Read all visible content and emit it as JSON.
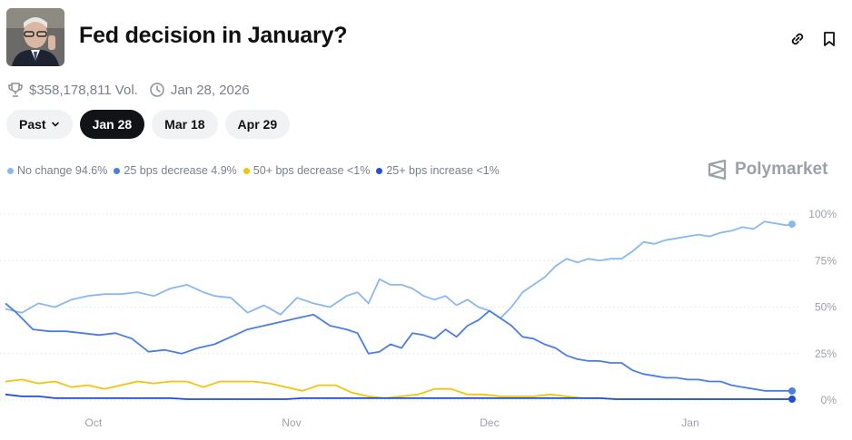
{
  "header": {
    "title": "Fed decision in January?",
    "avatar_icon": "fed-chair-portrait",
    "link_icon": "link-icon",
    "bookmark_icon": "bookmark-icon"
  },
  "meta": {
    "volume": "$358,178,811 Vol.",
    "date": "Jan 28, 2026"
  },
  "tabs": [
    {
      "label": "Past",
      "active": false,
      "dropdown": true
    },
    {
      "label": "Jan 28",
      "active": true
    },
    {
      "label": "Mar 18",
      "active": false
    },
    {
      "label": "Apr 29",
      "active": false
    }
  ],
  "legend": [
    {
      "label": "No change 94.6%",
      "color": "#8ab8ee"
    },
    {
      "label": "25 bps decrease 4.9%",
      "color": "#4a7ee0"
    },
    {
      "label": "50+ bps decrease <1%",
      "color": "#f1c40f"
    },
    {
      "label": "25+ bps increase <1%",
      "color": "#1f4fd6"
    }
  ],
  "brand": "Polymarket",
  "chart_data": {
    "type": "line",
    "y_ticks": [
      "100%",
      "75%",
      "50%",
      "25%",
      "0%"
    ],
    "ylim": [
      0,
      100
    ],
    "grid": true,
    "x_ticks": [
      "Oct",
      "Nov",
      "Dec",
      "Jan"
    ],
    "legend_position": "top-left",
    "series": [
      {
        "name": "No change",
        "color": "#8ab8ee",
        "points": [
          [
            0,
            49
          ],
          [
            3,
            47
          ],
          [
            6,
            52
          ],
          [
            9,
            50
          ],
          [
            12,
            54
          ],
          [
            15,
            56
          ],
          [
            18,
            57
          ],
          [
            21,
            57
          ],
          [
            24,
            58
          ],
          [
            27,
            56
          ],
          [
            30,
            60
          ],
          [
            33,
            62
          ],
          [
            36,
            58
          ],
          [
            38,
            56
          ],
          [
            41,
            55
          ],
          [
            44,
            47
          ],
          [
            47,
            51
          ],
          [
            50,
            46
          ],
          [
            53,
            55
          ],
          [
            56,
            52
          ],
          [
            59,
            50
          ],
          [
            62,
            56
          ],
          [
            64,
            58
          ],
          [
            66,
            52
          ],
          [
            68,
            65
          ],
          [
            70,
            62
          ],
          [
            72,
            62
          ],
          [
            74,
            60
          ],
          [
            76,
            56
          ],
          [
            78,
            54
          ],
          [
            80,
            56
          ],
          [
            82,
            51
          ],
          [
            84,
            54
          ],
          [
            86,
            50
          ],
          [
            88,
            48
          ],
          [
            90,
            44
          ],
          [
            92,
            50
          ],
          [
            94,
            58
          ],
          [
            96,
            62
          ],
          [
            98,
            66
          ],
          [
            100,
            72
          ],
          [
            102,
            76
          ],
          [
            104,
            74
          ],
          [
            106,
            76
          ],
          [
            108,
            75
          ],
          [
            110,
            76
          ],
          [
            112,
            76
          ],
          [
            114,
            80
          ],
          [
            116,
            85
          ],
          [
            118,
            84
          ],
          [
            120,
            86
          ],
          [
            122,
            87
          ],
          [
            124,
            88
          ],
          [
            126,
            89
          ],
          [
            128,
            88
          ],
          [
            130,
            90
          ],
          [
            132,
            91
          ],
          [
            134,
            93
          ],
          [
            136,
            92
          ],
          [
            138,
            96
          ],
          [
            140,
            95
          ],
          [
            142,
            94
          ],
          [
            143,
            94.6
          ]
        ]
      },
      {
        "name": "25 bps decrease",
        "color": "#4a7ee0",
        "points": [
          [
            0,
            52
          ],
          [
            2,
            47
          ],
          [
            5,
            38
          ],
          [
            8,
            37
          ],
          [
            11,
            37
          ],
          [
            14,
            36
          ],
          [
            17,
            35
          ],
          [
            20,
            36
          ],
          [
            23,
            33
          ],
          [
            26,
            26
          ],
          [
            29,
            27
          ],
          [
            32,
            25
          ],
          [
            35,
            28
          ],
          [
            38,
            30
          ],
          [
            41,
            34
          ],
          [
            44,
            38
          ],
          [
            47,
            40
          ],
          [
            50,
            42
          ],
          [
            53,
            44
          ],
          [
            56,
            46
          ],
          [
            59,
            40
          ],
          [
            62,
            38
          ],
          [
            64,
            36
          ],
          [
            66,
            25
          ],
          [
            68,
            26
          ],
          [
            70,
            30
          ],
          [
            72,
            28
          ],
          [
            74,
            36
          ],
          [
            76,
            35
          ],
          [
            78,
            33
          ],
          [
            80,
            38
          ],
          [
            82,
            34
          ],
          [
            84,
            40
          ],
          [
            86,
            43
          ],
          [
            88,
            48
          ],
          [
            90,
            44
          ],
          [
            92,
            40
          ],
          [
            94,
            34
          ],
          [
            96,
            33
          ],
          [
            98,
            30
          ],
          [
            100,
            28
          ],
          [
            102,
            24
          ],
          [
            104,
            22
          ],
          [
            106,
            21
          ],
          [
            108,
            21
          ],
          [
            110,
            20
          ],
          [
            112,
            20
          ],
          [
            114,
            16
          ],
          [
            116,
            14
          ],
          [
            118,
            13
          ],
          [
            120,
            12
          ],
          [
            122,
            12
          ],
          [
            124,
            11
          ],
          [
            126,
            11
          ],
          [
            128,
            10
          ],
          [
            130,
            10
          ],
          [
            132,
            8
          ],
          [
            134,
            7
          ],
          [
            136,
            6
          ],
          [
            138,
            5
          ],
          [
            140,
            5
          ],
          [
            142,
            5
          ],
          [
            143,
            4.9
          ]
        ]
      },
      {
        "name": "50+ bps decrease",
        "color": "#f1c40f",
        "points": [
          [
            0,
            10
          ],
          [
            3,
            11
          ],
          [
            6,
            9
          ],
          [
            9,
            10
          ],
          [
            12,
            7
          ],
          [
            15,
            8
          ],
          [
            18,
            6
          ],
          [
            21,
            8
          ],
          [
            24,
            10
          ],
          [
            27,
            9
          ],
          [
            30,
            10
          ],
          [
            33,
            10
          ],
          [
            36,
            7
          ],
          [
            39,
            10
          ],
          [
            42,
            10
          ],
          [
            45,
            10
          ],
          [
            48,
            9
          ],
          [
            51,
            7
          ],
          [
            54,
            5
          ],
          [
            57,
            8
          ],
          [
            60,
            8
          ],
          [
            63,
            4
          ],
          [
            66,
            2
          ],
          [
            69,
            1
          ],
          [
            72,
            2
          ],
          [
            75,
            3
          ],
          [
            78,
            6
          ],
          [
            81,
            6
          ],
          [
            84,
            3
          ],
          [
            87,
            3
          ],
          [
            90,
            2
          ],
          [
            93,
            2
          ],
          [
            96,
            2
          ],
          [
            99,
            3
          ],
          [
            102,
            2
          ],
          [
            105,
            1
          ],
          [
            108,
            1
          ],
          [
            111,
            0.5
          ],
          [
            114,
            0.5
          ],
          [
            117,
            0.5
          ],
          [
            120,
            0.5
          ],
          [
            123,
            0.5
          ],
          [
            126,
            0.5
          ],
          [
            129,
            0.5
          ],
          [
            132,
            0.5
          ],
          [
            135,
            0.5
          ],
          [
            138,
            0.5
          ],
          [
            141,
            0.5
          ],
          [
            143,
            0.5
          ]
        ]
      },
      {
        "name": "25+ bps increase",
        "color": "#1f4fd6",
        "points": [
          [
            0,
            3
          ],
          [
            3,
            2
          ],
          [
            6,
            2
          ],
          [
            9,
            1
          ],
          [
            12,
            1
          ],
          [
            15,
            1
          ],
          [
            18,
            1
          ],
          [
            21,
            1
          ],
          [
            24,
            1
          ],
          [
            27,
            1
          ],
          [
            30,
            1
          ],
          [
            33,
            0.5
          ],
          [
            36,
            0.5
          ],
          [
            39,
            0.5
          ],
          [
            42,
            0.5
          ],
          [
            45,
            0.5
          ],
          [
            48,
            0.5
          ],
          [
            51,
            0.5
          ],
          [
            54,
            1
          ],
          [
            57,
            1
          ],
          [
            60,
            1
          ],
          [
            63,
            1
          ],
          [
            66,
            1
          ],
          [
            69,
            1
          ],
          [
            72,
            1
          ],
          [
            75,
            1
          ],
          [
            78,
            1
          ],
          [
            81,
            1
          ],
          [
            84,
            1
          ],
          [
            87,
            1
          ],
          [
            90,
            1
          ],
          [
            93,
            1
          ],
          [
            96,
            1
          ],
          [
            99,
            1
          ],
          [
            102,
            1
          ],
          [
            105,
            1
          ],
          [
            108,
            1
          ],
          [
            111,
            0.5
          ],
          [
            114,
            0.5
          ],
          [
            117,
            0.5
          ],
          [
            120,
            0.5
          ],
          [
            123,
            0.5
          ],
          [
            126,
            0.5
          ],
          [
            129,
            0.5
          ],
          [
            132,
            0.5
          ],
          [
            135,
            0.5
          ],
          [
            138,
            0.5
          ],
          [
            141,
            0.5
          ],
          [
            143,
            0.5
          ]
        ]
      }
    ]
  }
}
